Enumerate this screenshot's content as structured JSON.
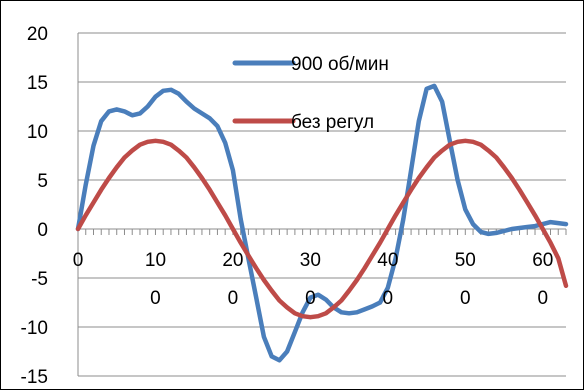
{
  "chart_data": {
    "type": "line",
    "title": "",
    "xlabel": "",
    "ylabel": "",
    "xlim": [
      0,
      63
    ],
    "ylim": [
      -15,
      20
    ],
    "y_ticks": [
      20,
      15,
      10,
      5,
      0,
      -5,
      -10,
      -15
    ],
    "x_ticks": [
      0,
      10,
      20,
      30,
      40,
      50,
      60
    ],
    "x_tick_labels_row1": [
      "0",
      "10",
      "20",
      "30",
      "40",
      "50",
      "60"
    ],
    "x_tick_labels_row2": [
      "0",
      "0",
      "0",
      "0",
      "0",
      "0"
    ],
    "grid": "horizontal",
    "legend_position": "top-right",
    "series": [
      {
        "name": "900 об/мин",
        "color": "#4a7ebb",
        "x": [
          0,
          1,
          2,
          3,
          4,
          5,
          6,
          7,
          8,
          9,
          10,
          11,
          12,
          13,
          14,
          15,
          16,
          17,
          18,
          19,
          20,
          21,
          22,
          23,
          24,
          25,
          26,
          27,
          28,
          29,
          30,
          31,
          32,
          33,
          34,
          35,
          36,
          37,
          38,
          39,
          40,
          41,
          42,
          43,
          44,
          45,
          46,
          47,
          48,
          49,
          50,
          51,
          52,
          53,
          54,
          55,
          56,
          57,
          58,
          59,
          60,
          61,
          62,
          63
        ],
        "values": [
          0,
          4.5,
          8.5,
          11,
          12,
          12.2,
          12,
          11.6,
          11.8,
          12.5,
          13.5,
          14.1,
          14.2,
          13.8,
          13,
          12.3,
          11.8,
          11.3,
          10.5,
          8.8,
          6,
          1,
          -3,
          -7,
          -11,
          -13,
          -13.4,
          -12.5,
          -10.5,
          -8.5,
          -7,
          -6.7,
          -7.2,
          -8,
          -8.5,
          -8.6,
          -8.5,
          -8.2,
          -7.9,
          -7.5,
          -6,
          -3,
          1,
          6,
          11,
          14.3,
          14.6,
          13,
          9,
          5,
          2,
          0.5,
          -0.3,
          -0.5,
          -0.4,
          -0.2,
          0,
          0.1,
          0.2,
          0.3,
          0.5,
          0.7,
          0.6,
          0.5
        ]
      },
      {
        "name": "без регул",
        "color": "#be4b48",
        "x": [
          0,
          1,
          2,
          3,
          4,
          5,
          6,
          7,
          8,
          9,
          10,
          11,
          12,
          13,
          14,
          15,
          16,
          17,
          18,
          19,
          20,
          21,
          22,
          23,
          24,
          25,
          26,
          27,
          28,
          29,
          30,
          31,
          32,
          33,
          34,
          35,
          36,
          37,
          38,
          39,
          40,
          41,
          42,
          43,
          44,
          45,
          46,
          47,
          48,
          49,
          50,
          51,
          52,
          53,
          54,
          55,
          56,
          57,
          58,
          59,
          60,
          61,
          62,
          63
        ],
        "values": [
          0,
          1.4,
          2.7,
          4.0,
          5.2,
          6.3,
          7.3,
          8.0,
          8.6,
          8.9,
          9.0,
          8.9,
          8.6,
          8.0,
          7.3,
          6.3,
          5.2,
          4.0,
          2.7,
          1.4,
          0,
          -1.4,
          -2.7,
          -4.0,
          -5.2,
          -6.3,
          -7.3,
          -8.0,
          -8.6,
          -8.9,
          -9.0,
          -8.9,
          -8.6,
          -8.0,
          -7.3,
          -6.3,
          -5.2,
          -4.0,
          -2.7,
          -1.4,
          0,
          1.4,
          2.7,
          4.0,
          5.2,
          6.3,
          7.3,
          8.0,
          8.6,
          8.9,
          9.0,
          8.9,
          8.6,
          8.0,
          7.3,
          6.3,
          5.2,
          4.0,
          2.7,
          1.4,
          0,
          -1.4,
          -3.0,
          -5.8
        ]
      }
    ]
  }
}
